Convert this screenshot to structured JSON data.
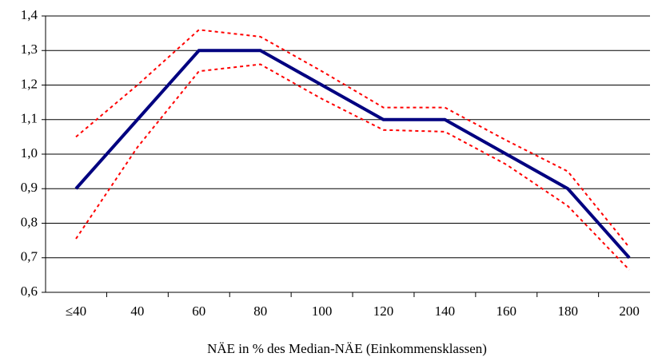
{
  "chart_data": {
    "type": "line",
    "x_label": "NÄE in % des Median-NÄE (Einkommensklassen)",
    "categories": [
      "≤40",
      "40",
      "60",
      "80",
      "100",
      "120",
      "140",
      "160",
      "180",
      "200"
    ],
    "series": [
      {
        "color": "#000080",
        "style": "solid",
        "values": [
          0.9,
          1.1,
          1.3,
          1.3,
          1.2,
          1.1,
          1.1,
          1.0,
          0.9,
          0.7
        ]
      },
      {
        "color": "#ff0000",
        "style": "dotted",
        "values": [
          1.05,
          1.2,
          1.36,
          1.34,
          1.24,
          1.135,
          1.135,
          1.04,
          0.95,
          0.73
        ]
      },
      {
        "color": "#ff0000",
        "style": "dotted",
        "values": [
          0.755,
          1.02,
          1.24,
          1.26,
          1.16,
          1.07,
          1.065,
          0.97,
          0.85,
          0.665
        ]
      }
    ],
    "ylim": [
      0.6,
      1.4
    ],
    "yticks": [
      {
        "value": 0.6,
        "label": "0,6"
      },
      {
        "value": 0.7,
        "label": "0,7"
      },
      {
        "value": 0.8,
        "label": "0,8"
      },
      {
        "value": 0.9,
        "label": "0,9"
      },
      {
        "value": 1.0,
        "label": "1,0"
      },
      {
        "value": 1.1,
        "label": "1,1"
      },
      {
        "value": 1.2,
        "label": "1,2"
      },
      {
        "value": 1.3,
        "label": "1,3"
      },
      {
        "value": 1.4,
        "label": "1,4"
      }
    ],
    "grid": true
  }
}
